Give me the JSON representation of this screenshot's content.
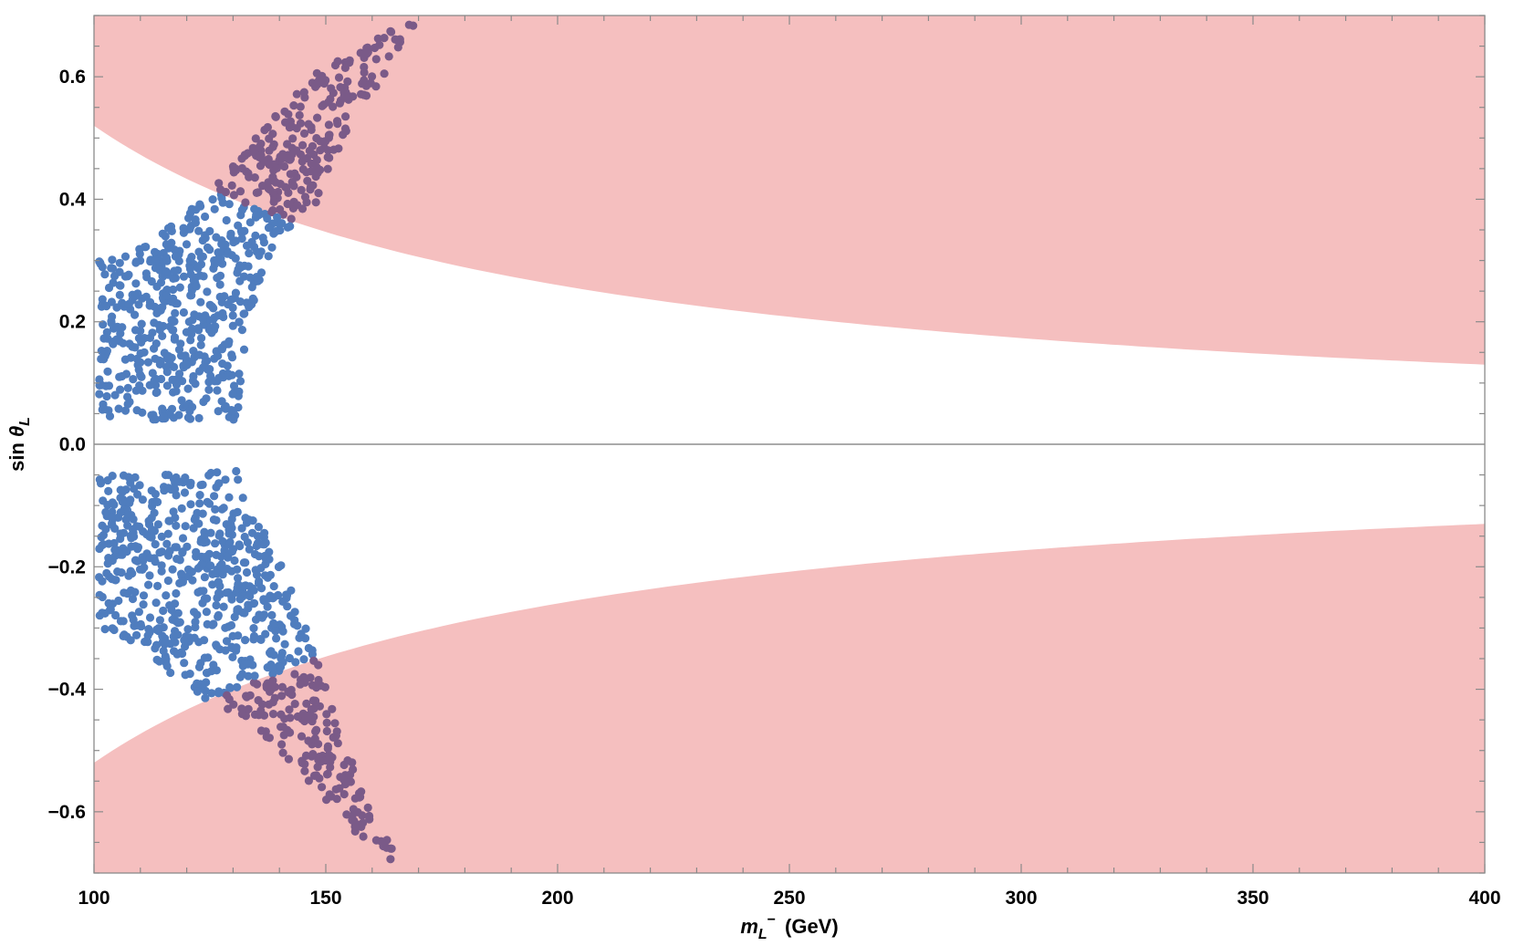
{
  "chart_data": {
    "type": "scatter",
    "title": "",
    "xlabel": {
      "symbol": "m",
      "subscript": "L",
      "superscript": "−",
      "unit": "(GeV)"
    },
    "ylabel": {
      "prefix": "sin",
      "symbol": "θ",
      "subscript": "L"
    },
    "xlim": [
      100,
      400
    ],
    "ylim": [
      -0.7,
      0.7
    ],
    "x_ticks": [
      {
        "value": 100,
        "label": "100"
      },
      {
        "value": 150,
        "label": "150"
      },
      {
        "value": 200,
        "label": "200"
      },
      {
        "value": 250,
        "label": "250"
      },
      {
        "value": 300,
        "label": "300"
      },
      {
        "value": 350,
        "label": "350"
      },
      {
        "value": 400,
        "label": "400"
      }
    ],
    "y_ticks": [
      {
        "value": 0.6,
        "label": "0.6"
      },
      {
        "value": 0.4,
        "label": "0.4"
      },
      {
        "value": 0.2,
        "label": "0.2"
      },
      {
        "value": 0.0,
        "label": "0.0"
      },
      {
        "value": -0.2,
        "label": "−0.2"
      },
      {
        "value": -0.4,
        "label": "−0.4"
      },
      {
        "value": -0.6,
        "label": "−0.6"
      }
    ],
    "grid": false,
    "zero_line": true,
    "excluded_region": {
      "name": "",
      "color": "#f5bfbf",
      "boundary_model": "abs(sin_theta_L) > A / m",
      "A_GeV": 52,
      "description_points": [
        [
          100,
          0.52
        ],
        [
          150,
          0.347
        ],
        [
          200,
          0.26
        ],
        [
          250,
          0.208
        ],
        [
          300,
          0.173
        ],
        [
          350,
          0.149
        ],
        [
          400,
          0.13
        ]
      ]
    },
    "series": [
      {
        "name": "",
        "color": "#4f7dbe",
        "overlap_color": "#7a5a88",
        "marker": "filled-circle",
        "approx_points": 1500,
        "upper_polygon": [
          [
            101,
            0.05
          ],
          [
            101,
            0.3
          ],
          [
            110,
            0.32
          ],
          [
            120,
            0.38
          ],
          [
            127,
            0.43
          ],
          [
            135,
            0.5
          ],
          [
            145,
            0.59
          ],
          [
            158,
            0.66
          ],
          [
            170,
            0.69
          ],
          [
            165,
            0.63
          ],
          [
            155,
            0.52
          ],
          [
            148,
            0.39
          ],
          [
            140,
            0.34
          ],
          [
            135,
            0.25
          ],
          [
            132,
            0.14
          ],
          [
            131,
            0.04
          ],
          [
            105,
            0.04
          ]
        ],
        "lower_polygon": [
          [
            101,
            -0.05
          ],
          [
            131,
            -0.04
          ],
          [
            134,
            -0.09
          ],
          [
            137,
            -0.14
          ],
          [
            143,
            -0.24
          ],
          [
            148,
            -0.35
          ],
          [
            153,
            -0.47
          ],
          [
            160,
            -0.6
          ],
          [
            168,
            -0.69
          ],
          [
            162,
            -0.68
          ],
          [
            150,
            -0.58
          ],
          [
            135,
            -0.46
          ],
          [
            125,
            -0.42
          ],
          [
            116,
            -0.38
          ],
          [
            110,
            -0.33
          ],
          [
            101,
            -0.3
          ]
        ]
      }
    ]
  }
}
